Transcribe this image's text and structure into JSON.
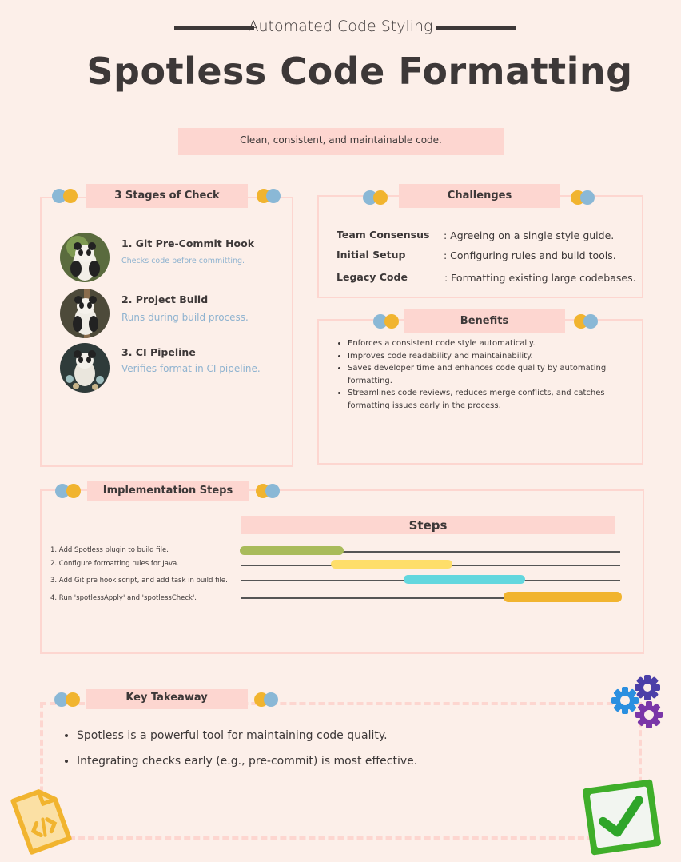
{
  "header": {
    "kicker": "Automated Code Styling",
    "title": "Spotless Code Formatting",
    "subtitle": "Clean, consistent, and maintainable code."
  },
  "colors": {
    "background": "#fcefe9",
    "panel_border": "#fdd6d0",
    "label_bg": "#fdd6d0",
    "text": "#3d3838",
    "dot_blue": "#8ab8d6",
    "dot_yellow": "#f1b42f",
    "stage_desc": "#8fb3d0"
  },
  "stages": {
    "label": "3 Stages of Check",
    "items": [
      {
        "title": "1. Git Pre-Commit Hook",
        "desc": "Checks code before committing.",
        "image": "panda-icon"
      },
      {
        "title": "2. Project Build",
        "desc": "Runs during build process.",
        "image": "panda-icon"
      },
      {
        "title": "3. CI Pipeline",
        "desc": "Verifies format in CI pipeline.",
        "image": "panda-icon"
      }
    ]
  },
  "challenges": {
    "label": "Challenges",
    "items": [
      {
        "term": "Team Consensus",
        "def": ": Agreeing on a single style guide."
      },
      {
        "term": "Initial Setup",
        "def": ": Configuring rules and build tools."
      },
      {
        "term": "Legacy Code",
        "def": ": Formatting existing large codebases."
      }
    ]
  },
  "benefits": {
    "label": "Benefits",
    "items": [
      "Enforces a consistent code style automatically.",
      "Improves code readability and maintainability.",
      "Saves developer time and enhances code quality by automating formatting.",
      "Streamlines code reviews, reduces merge conflicts, and catches formatting issues early in the process."
    ]
  },
  "implementation": {
    "label": "Implementation Steps",
    "steps_title": "Steps",
    "steps": [
      {
        "label": "1. Add Spotless plugin to build file.",
        "color": "#a9bb5b"
      },
      {
        "label": "2. Configure formatting rules for Java.",
        "color": "#fede6a"
      },
      {
        "label": "3. Add Git pre hook script, and add task in build file.",
        "color": "#63d7de"
      },
      {
        "label": "4. Run 'spotlessApply' and 'spotlessCheck'.",
        "color": "#f1b42f"
      }
    ]
  },
  "takeaway": {
    "label": "Key Takeaway",
    "items": [
      "Spotless is a powerful tool for maintaining code quality.",
      "Integrating checks early (e.g., pre-commit) is most effective."
    ]
  },
  "decorations": {
    "gears": "gears-icon",
    "checkmark": "checkmark-icon",
    "document": "code-document-icon"
  }
}
